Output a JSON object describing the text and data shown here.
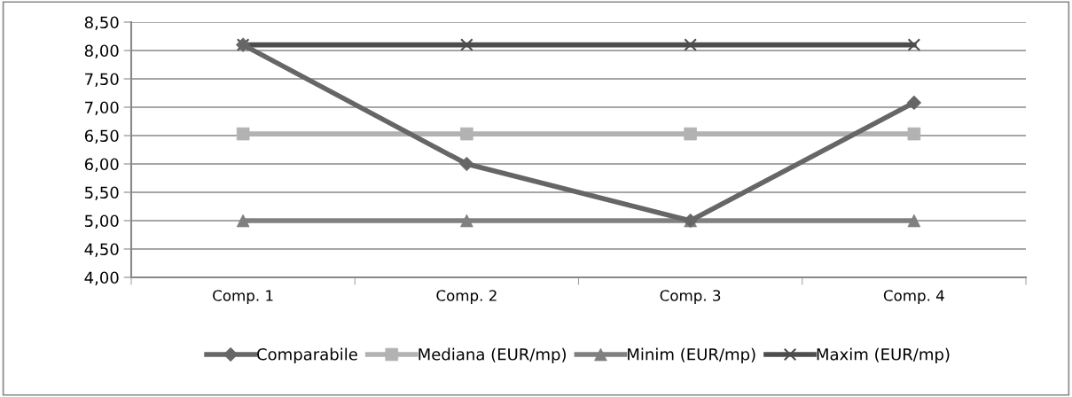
{
  "chart_data": {
    "type": "line",
    "categories": [
      "Comp. 1",
      "Comp. 2",
      "Comp. 3",
      "Comp. 4"
    ],
    "series": [
      {
        "name": "Comparabile",
        "color": "#666666",
        "values": [
          8.1,
          6.0,
          5.0,
          7.08
        ],
        "marker": "diamond"
      },
      {
        "name": "Mediana (EUR/mp)",
        "color": "#b2b2b2",
        "values": [
          6.53,
          6.53,
          6.53,
          6.53
        ],
        "marker": "square"
      },
      {
        "name": "Minim (EUR/mp)",
        "color": "#808080",
        "values": [
          5.0,
          5.0,
          5.0,
          5.0
        ],
        "marker": "triangle"
      },
      {
        "name": "Maxim (EUR/mp)",
        "color": "#4d4d4d",
        "values": [
          8.1,
          8.1,
          8.1,
          8.1
        ],
        "marker": "cross"
      }
    ],
    "ylim": [
      4.0,
      8.5
    ],
    "yticks": [
      {
        "value": 4.0,
        "label": "4,00"
      },
      {
        "value": 4.5,
        "label": "4,50"
      },
      {
        "value": 5.0,
        "label": "5,00"
      },
      {
        "value": 5.5,
        "label": "5,50"
      },
      {
        "value": 6.0,
        "label": "6,00"
      },
      {
        "value": 6.5,
        "label": "6,50"
      },
      {
        "value": 7.0,
        "label": "7,00"
      },
      {
        "value": 7.5,
        "label": "7,50"
      },
      {
        "value": 8.0,
        "label": "8,00"
      },
      {
        "value": 8.5,
        "label": "8,50"
      }
    ],
    "grid": "y",
    "legend": "bottom",
    "line_style": "solid"
  }
}
